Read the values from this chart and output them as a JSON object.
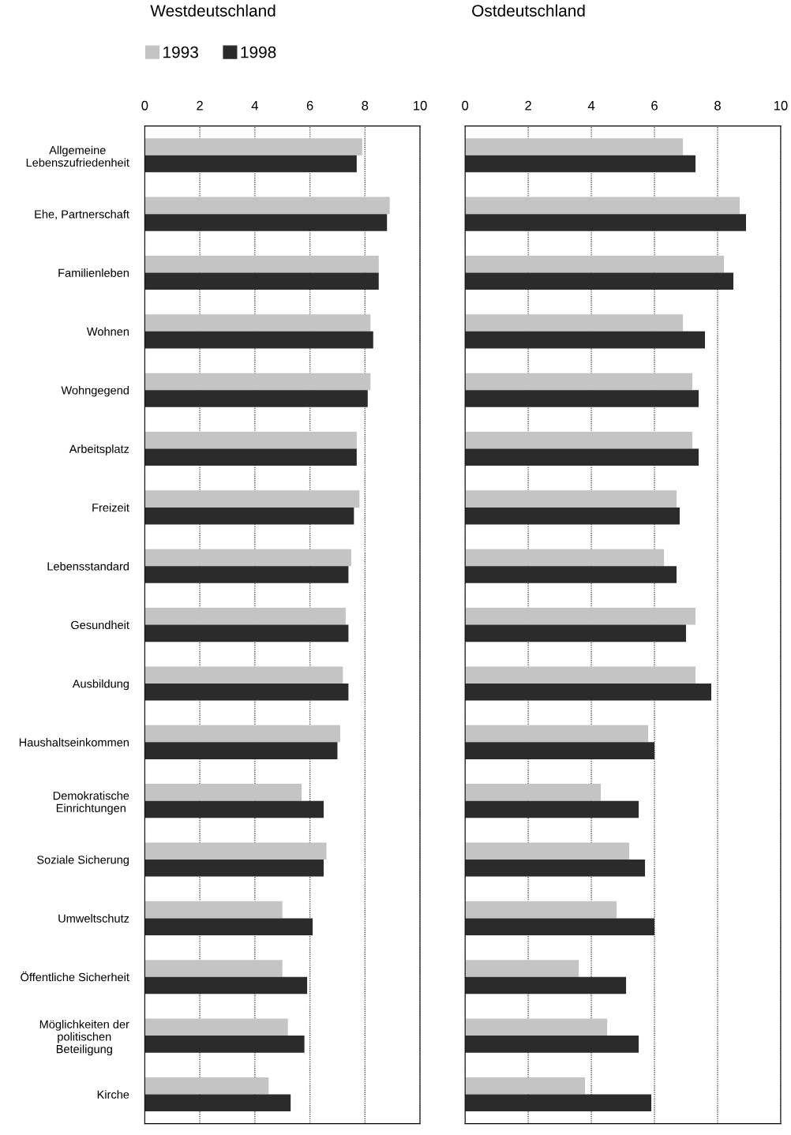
{
  "chart_data": [
    {
      "type": "bar",
      "orientation": "horizontal",
      "title": "Westdeutschland",
      "categories": [
        "Allgemeine\nLebenszufriedenheit",
        "Ehe, Partnerschaft",
        "Familienleben",
        "Wohnen",
        "Wohngegend",
        "Arbeitsplatz",
        "Freizeit",
        "Lebensstandard",
        "Gesundheit",
        "Ausbildung",
        "Haushaltseinkommen",
        "Demokratische\nEinrichtungen",
        "Soziale Sicherung",
        "Umweltschutz",
        "Öffentliche Sicherheit",
        "Möglichkeiten der\npolitischen\nBeteiligung",
        "Kirche"
      ],
      "series": [
        {
          "name": "1993",
          "color": "#c4c4c4",
          "values": [
            7.9,
            8.9,
            8.5,
            8.2,
            8.2,
            7.7,
            7.8,
            7.5,
            7.3,
            7.2,
            7.1,
            5.7,
            6.6,
            5.0,
            5.0,
            5.2,
            4.5
          ]
        },
        {
          "name": "1998",
          "color": "#2b2b2b",
          "values": [
            7.7,
            8.8,
            8.5,
            8.3,
            8.1,
            7.7,
            7.6,
            7.4,
            7.4,
            7.4,
            7.0,
            6.5,
            6.5,
            6.1,
            5.9,
            5.8,
            5.3
          ]
        }
      ],
      "xlim": [
        0,
        10
      ],
      "xticks": [
        0,
        2,
        4,
        6,
        8,
        10
      ],
      "grid": "x",
      "legend": "top left"
    },
    {
      "type": "bar",
      "orientation": "horizontal",
      "title": "Ostdeutschland",
      "categories": [
        null,
        null,
        null,
        null,
        null,
        null,
        null,
        null,
        null,
        null,
        null,
        null,
        null,
        null,
        null,
        null,
        null
      ],
      "series": [
        {
          "color": "#c4c4c4",
          "values": [
            6.9,
            8.7,
            8.2,
            6.9,
            7.2,
            7.2,
            6.7,
            6.3,
            7.3,
            7.3,
            5.8,
            4.3,
            5.2,
            4.8,
            3.6,
            4.5,
            3.8
          ]
        },
        {
          "color": "#2b2b2b",
          "values": [
            7.3,
            8.9,
            8.5,
            7.6,
            7.4,
            7.4,
            6.8,
            6.7,
            7.0,
            7.8,
            6.0,
            5.5,
            5.7,
            6.0,
            5.1,
            5.5,
            5.9
          ]
        }
      ],
      "xlim": [
        0,
        10
      ],
      "xticks": [
        0,
        2,
        4,
        6,
        8,
        10
      ],
      "grid": "x",
      "tick_labels": "x"
    }
  ]
}
